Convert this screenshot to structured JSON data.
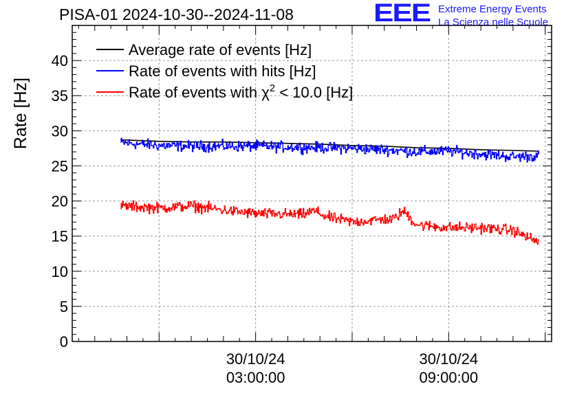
{
  "header": {
    "title": "PISA-01 2024-10-30--2024-11-08",
    "logo_mark": "EEE",
    "logo_line1": "Extreme Energy Events",
    "logo_line2": "La Scienza nelle Scuole"
  },
  "colors": {
    "average": "#000000",
    "hits": "#0000ff",
    "chi2": "#ff0000",
    "grid": "#9a9a9a",
    "logo": "#1a1aff"
  },
  "chart_data": {
    "type": "line",
    "title": "PISA-01 2024-10-30--2024-11-08",
    "xlabel": "",
    "ylabel": "Rate [Hz]",
    "ylim": [
      0,
      45
    ],
    "yticks": [
      0,
      5,
      10,
      15,
      20,
      25,
      30,
      35,
      40
    ],
    "xlim_hours": [
      -2.7,
      12.2
    ],
    "xticks": [
      {
        "hours": 3,
        "date": "30/10/24",
        "time": "03:00:00"
      },
      {
        "hours": 9,
        "date": "30/10/24",
        "time": "09:00:00"
      }
    ],
    "grid": true,
    "legend_position": "top-left",
    "x_hours": [
      -1.2,
      0.0,
      1.0,
      2.0,
      3.0,
      4.0,
      5.0,
      6.0,
      7.0,
      8.0,
      9.0,
      10.0,
      11.0,
      11.8
    ],
    "series": [
      {
        "name": "Average rate of events [Hz]",
        "color": "#000000",
        "noise": 0,
        "values": [
          28.7,
          28.5,
          28.4,
          28.4,
          28.3,
          28.2,
          28.1,
          27.9,
          27.8,
          27.6,
          27.5,
          27.3,
          27.2,
          27.1
        ]
      },
      {
        "name": "Rate of events with hits [Hz]",
        "color": "#0000ff",
        "noise": 0.75,
        "values": [
          28.3,
          27.9,
          27.8,
          27.8,
          27.8,
          27.7,
          27.6,
          27.5,
          27.3,
          27.0,
          27.1,
          26.7,
          26.3,
          26.4
        ]
      },
      {
        "name": "Rate of events with χ² < 10.0 [Hz]",
        "color": "#ff0000",
        "noise": 0.75,
        "values": [
          19.3,
          19.0,
          19.3,
          18.7,
          18.2,
          18.1,
          17.9,
          17.0,
          17.4,
          16.6,
          16.2,
          16.2,
          15.8,
          14.1
        ],
        "bumps": [
          {
            "hours": 7.6,
            "height": 1.5
          },
          {
            "hours": 4.8,
            "height": 0.6
          }
        ]
      }
    ]
  }
}
